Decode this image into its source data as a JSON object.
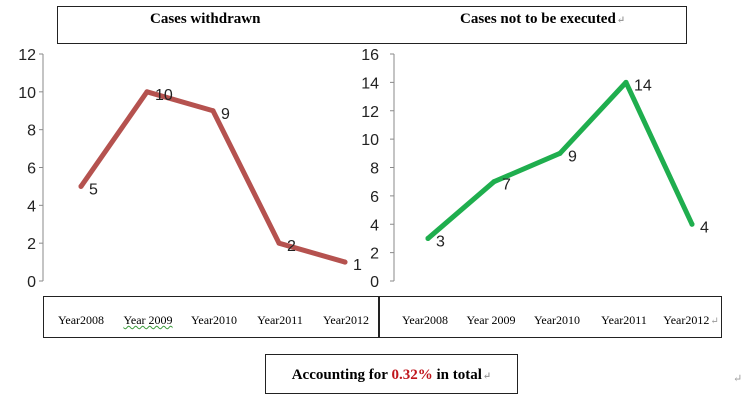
{
  "chart_data": [
    {
      "type": "line",
      "title": "Cases withdrawn",
      "categories": [
        "Year2008",
        "Year 2009",
        "Year2010",
        "Year2011",
        "Year2012"
      ],
      "values": [
        5,
        10,
        9,
        2,
        1
      ],
      "data_labels": [
        "5",
        "10",
        "9",
        "2",
        "1"
      ],
      "ylim": [
        0,
        12
      ],
      "yticks": [
        0,
        2,
        4,
        6,
        8,
        10,
        12
      ],
      "ytick_labels": [
        "0",
        "2",
        "4",
        "6",
        "8",
        "10",
        "12"
      ],
      "grid": false,
      "color": "#b5524f"
    },
    {
      "type": "line",
      "title": "Cases not to be executed",
      "categories": [
        "Year2008",
        "Year 2009",
        "Year2010",
        "Year2011",
        "Year2012"
      ],
      "values": [
        3,
        7,
        9,
        14,
        4
      ],
      "data_labels": [
        "3",
        "7",
        "9",
        "14",
        "4"
      ],
      "ylim": [
        0,
        16
      ],
      "yticks": [
        0,
        2,
        4,
        6,
        8,
        10,
        12,
        14,
        16
      ],
      "ytick_labels": [
        "0",
        "2",
        "4",
        "6",
        "8",
        "10",
        "12",
        "14",
        "16"
      ],
      "grid": false,
      "color": "#1fae4e"
    }
  ],
  "summary": {
    "prefix": "Accounting for ",
    "highlight": "0.32%",
    "suffix": " in total",
    "highlight_color": "#c0151c"
  }
}
